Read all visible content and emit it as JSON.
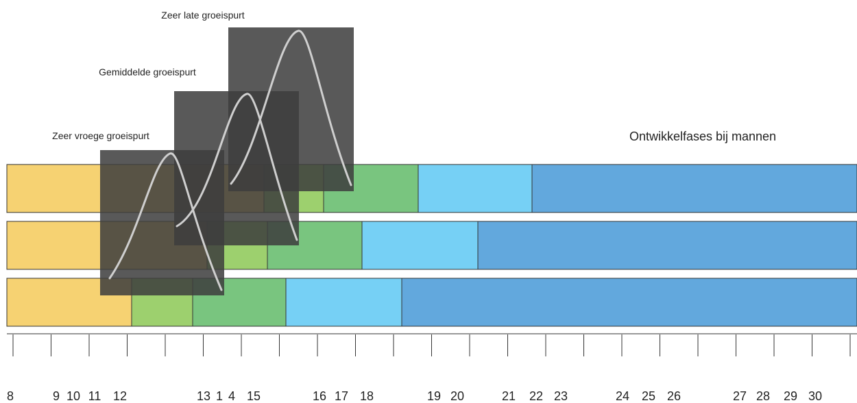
{
  "title": "Ontwikkelfases bij mannen",
  "windows": [
    {
      "label": "Zeer late groeispurt"
    },
    {
      "label": "Gemiddelde groeispurt"
    },
    {
      "label": "Zeer vroege groeispurt"
    }
  ],
  "tick_labels": [
    "8",
    "9",
    "10",
    "11",
    "12",
    "13",
    "1",
    "4",
    "15",
    "16",
    "17",
    "18",
    "19",
    "20",
    "21",
    "22",
    "23",
    "24",
    "25",
    "26",
    "27",
    "28",
    "29",
    "30"
  ],
  "colors": {
    "phase_1": "#F6D272",
    "phase_2": "#9DD06E",
    "phase_3": "#79C57F",
    "phase_4": "#76D0F5",
    "phase_5": "#62A8DD",
    "overlay": "#3E3E3E",
    "curve": "#CFCFCF"
  }
}
